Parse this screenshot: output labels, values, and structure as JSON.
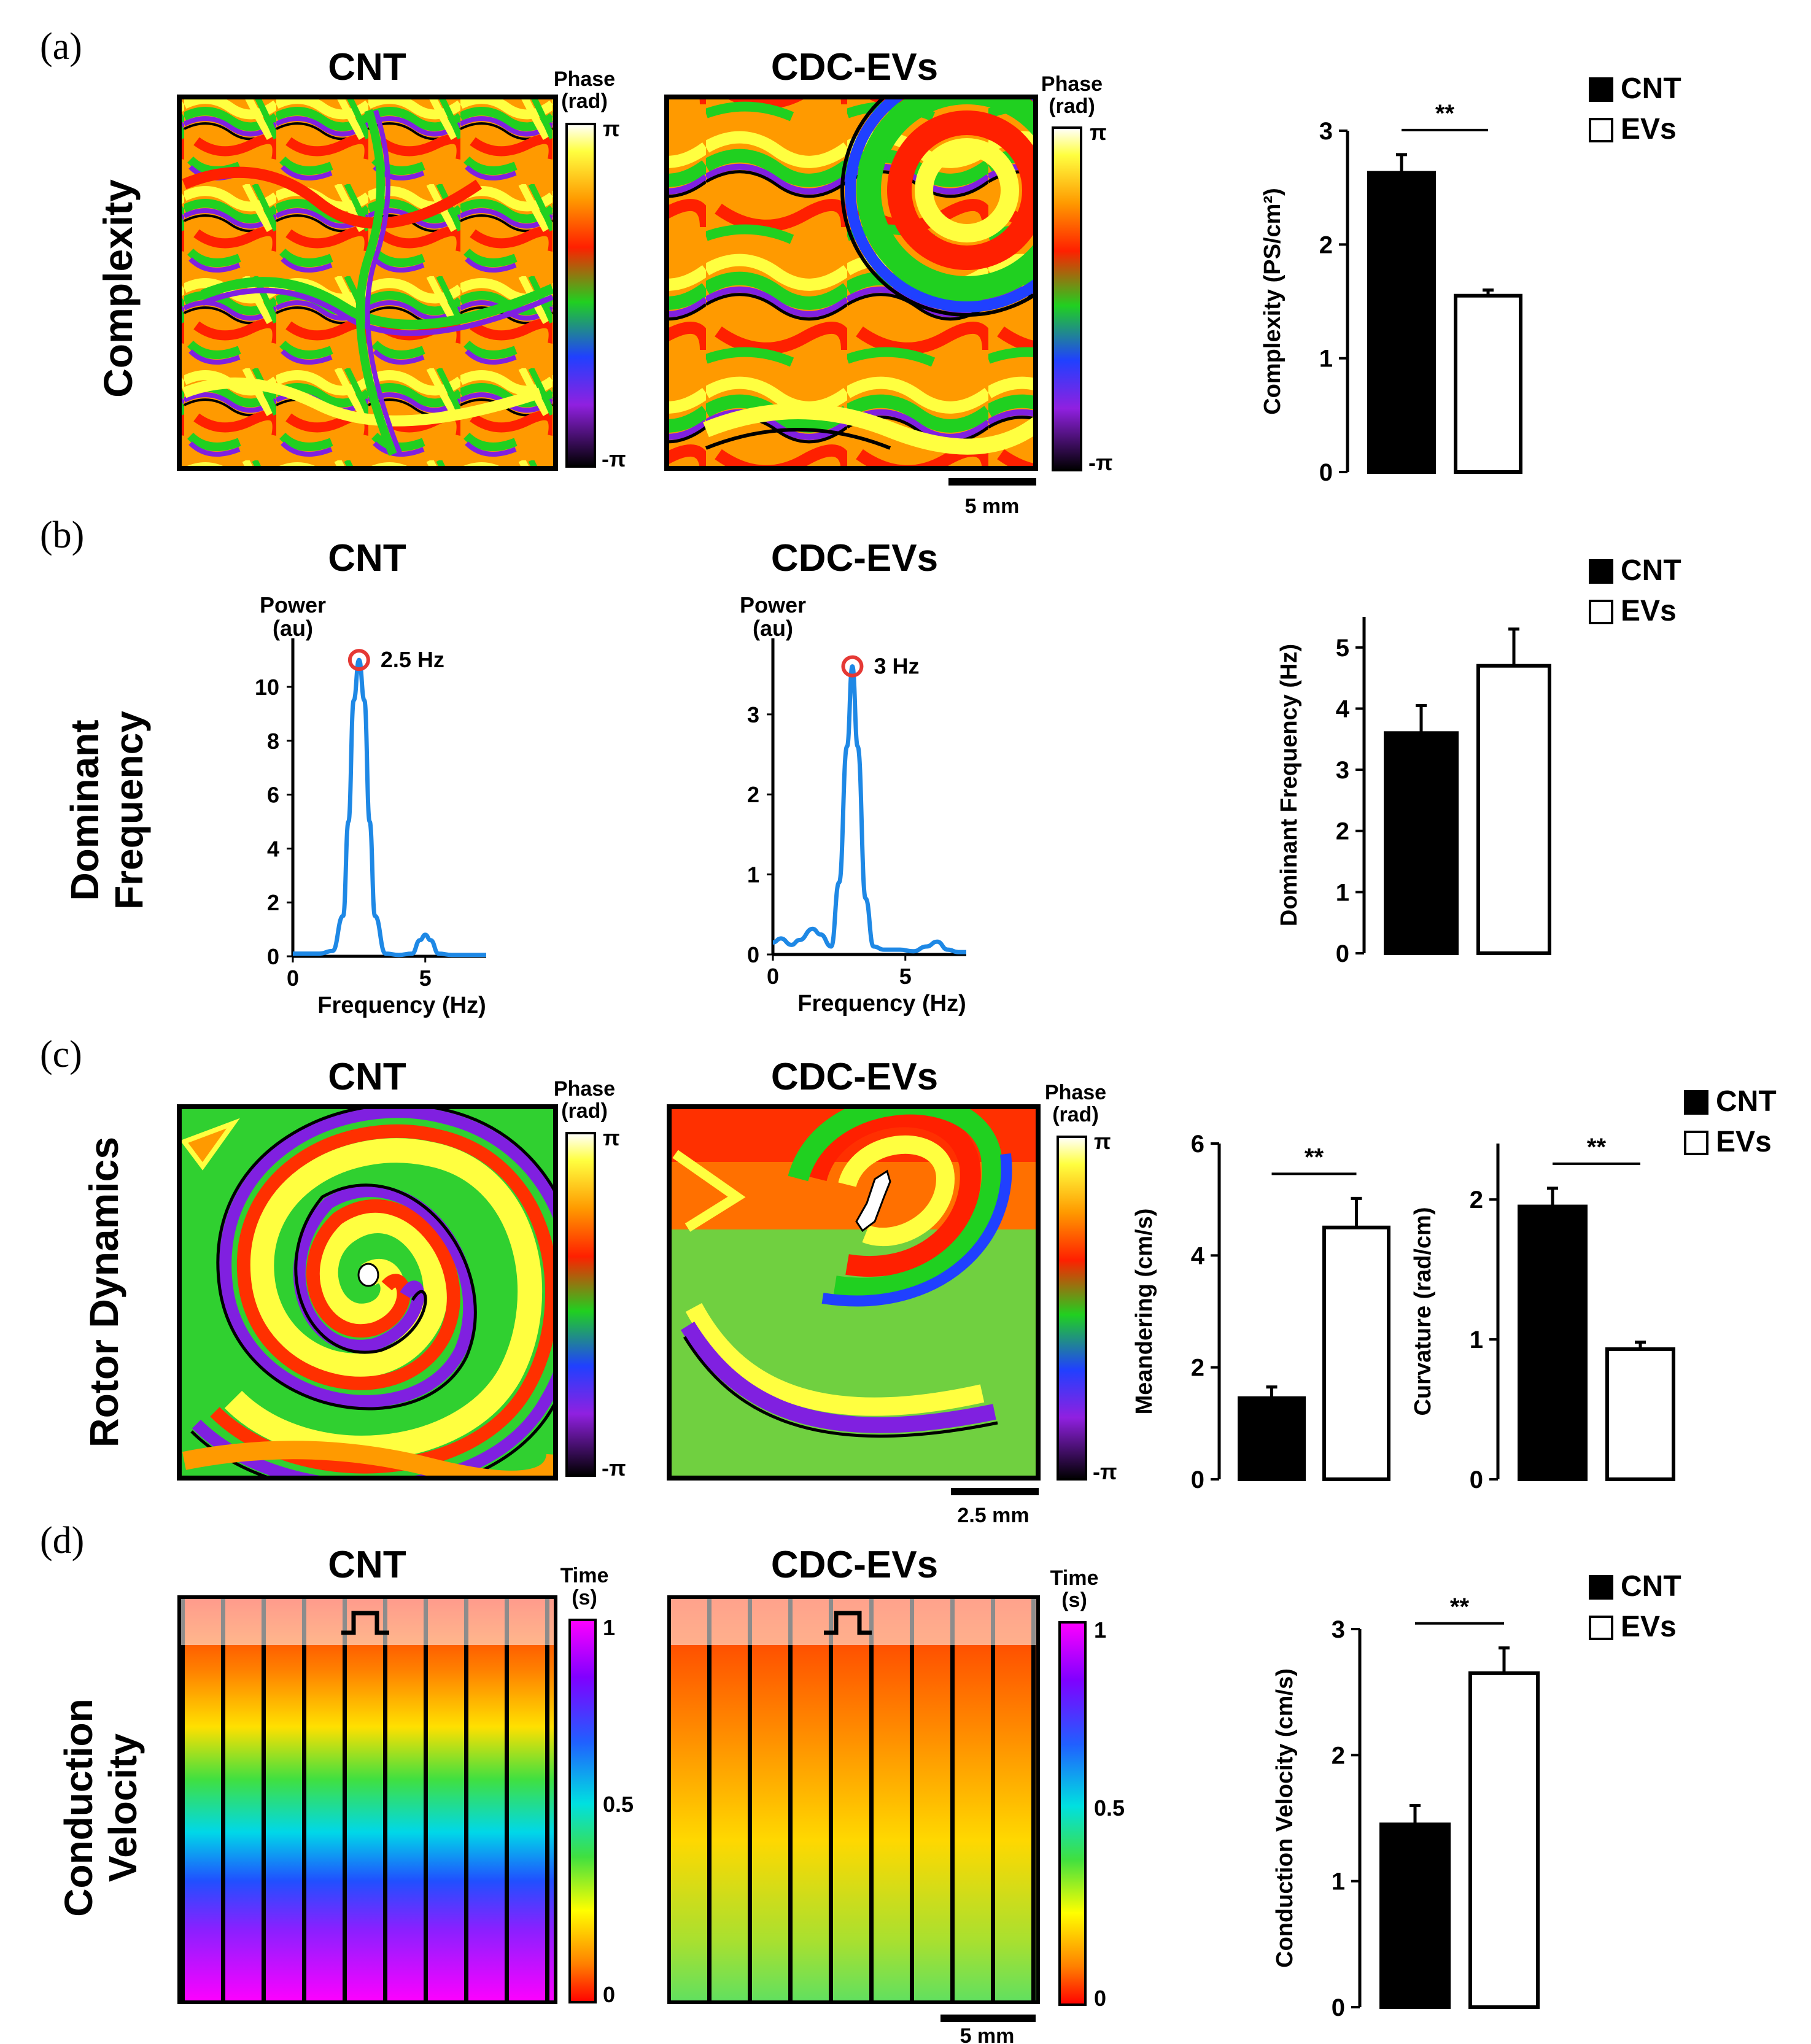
{
  "panels": {
    "a": {
      "letter": "(a)",
      "row_label": "Complexity",
      "left_title": "CNT",
      "right_title": "CDC-EVs",
      "colorbar": {
        "title1": "Phase",
        "title2": "(rad)",
        "top": "π",
        "bottom": "-π"
      },
      "scale_bar": "5 mm"
    },
    "b": {
      "letter": "(b)",
      "row_label_1": "Dominant",
      "row_label_2": "Frequency",
      "left_title": "CNT",
      "right_title": "CDC-EVs"
    },
    "c": {
      "letter": "(c)",
      "row_label": "Rotor Dynamics",
      "left_title": "CNT",
      "right_title": "CDC-EVs",
      "colorbar": {
        "title1": "Phase",
        "title2": "(rad)",
        "top": "π",
        "bottom": "-π"
      },
      "scale_bar": "2.5 mm"
    },
    "d": {
      "letter": "(d)",
      "row_label_1": "Conduction",
      "row_label_2": "Velocity",
      "left_title": "CNT",
      "right_title": "CDC-EVs",
      "colorbar": {
        "title1": "Time",
        "title2": "(s)",
        "top": "1",
        "mid": "0.5",
        "bottom": "0"
      },
      "scale_bar": "5 mm"
    }
  },
  "legend": {
    "cnt": "CNT",
    "evs": "EVs"
  },
  "colors": {
    "cnt_fill": "#000000",
    "evs_fill": "#ffffff",
    "spectrum_line": "#1e88e5",
    "peak_marker": "#e53935"
  },
  "chart_data": [
    {
      "id": "complexity",
      "type": "bar",
      "categories": [
        "CNT",
        "EVs"
      ],
      "values": [
        2.63,
        1.55
      ],
      "errors": [
        0.16,
        0.05
      ],
      "ylabel": "Complexity (PS/cm²)",
      "ylim": [
        0,
        3
      ],
      "yticks": [
        "0",
        "1",
        "2",
        "3"
      ],
      "significance": "**"
    },
    {
      "id": "spectrum_cnt",
      "type": "line",
      "x": [
        0,
        0.5,
        1,
        1.5,
        1.9,
        2.1,
        2.3,
        2.5,
        2.7,
        2.9,
        3.1,
        3.5,
        4,
        4.5,
        4.8,
        5,
        5.2,
        5.5,
        6,
        6.5,
        7,
        7.3
      ],
      "y": [
        0.1,
        0.1,
        0.1,
        0.2,
        1.5,
        5,
        9.5,
        11,
        9.5,
        5,
        1.5,
        0.1,
        0.05,
        0.1,
        0.6,
        0.8,
        0.6,
        0.1,
        0.05,
        0.05,
        0.05,
        0.05
      ],
      "xlabel": "Frequency (Hz)",
      "ylabel": "Power (au)",
      "ylabel_line1": "Power",
      "ylabel_line2": "(au)",
      "xlim": [
        0,
        7.3
      ],
      "ylim": [
        0,
        11.8
      ],
      "xticks": [
        "0",
        "5"
      ],
      "yticks": [
        "0",
        "2",
        "4",
        "6",
        "8",
        "10"
      ],
      "peak": {
        "x": 2.5,
        "y": 11,
        "label": "2.5 Hz"
      }
    },
    {
      "id": "spectrum_evs",
      "type": "line",
      "x": [
        0,
        0.3,
        0.7,
        1,
        1.5,
        1.8,
        2.2,
        2.5,
        2.8,
        3,
        3.2,
        3.5,
        3.8,
        4.2,
        4.8,
        5.3,
        5.8,
        6.2,
        6.6,
        7,
        7.3
      ],
      "y": [
        0.15,
        0.2,
        0.12,
        0.18,
        0.32,
        0.25,
        0.1,
        0.9,
        2.6,
        3.6,
        2.6,
        0.7,
        0.1,
        0.06,
        0.06,
        0.04,
        0.1,
        0.16,
        0.06,
        0.03,
        0.03
      ],
      "xlabel": "Frequency (Hz)",
      "ylabel": "Power (au)",
      "ylabel_line1": "Power",
      "ylabel_line2": "(au)",
      "xlim": [
        0,
        7.3
      ],
      "ylim": [
        0,
        3.95
      ],
      "xticks": [
        "0",
        "5"
      ],
      "yticks": [
        "0",
        "1",
        "2",
        "3"
      ],
      "peak": {
        "x": 3,
        "y": 3.6,
        "label": "3 Hz"
      }
    },
    {
      "id": "dominant_frequency",
      "type": "bar",
      "categories": [
        "CNT",
        "EVs"
      ],
      "values": [
        3.6,
        4.7
      ],
      "errors": [
        0.45,
        0.6
      ],
      "ylabel": "Dominant Frequency (Hz)",
      "ylim": [
        0,
        5.5
      ],
      "yticks": [
        "0",
        "1",
        "2",
        "3",
        "4",
        "5"
      ],
      "significance": ""
    },
    {
      "id": "meandering",
      "type": "bar",
      "categories": [
        "CNT",
        "EVs"
      ],
      "values": [
        1.45,
        4.5
      ],
      "errors": [
        0.2,
        0.52
      ],
      "ylabel": "Meandering (cm/s)",
      "ylim": [
        0,
        6
      ],
      "yticks": [
        "0",
        "2",
        "4",
        "6"
      ],
      "significance": "**"
    },
    {
      "id": "curvature",
      "type": "bar",
      "categories": [
        "CNT",
        "EVs"
      ],
      "values": [
        1.95,
        0.93
      ],
      "errors": [
        0.13,
        0.05
      ],
      "ylabel": "Curvature (rad/cm)",
      "ylim": [
        0,
        2.4
      ],
      "yticks": [
        "0",
        "1",
        "2"
      ],
      "significance": "**"
    },
    {
      "id": "conduction_velocity",
      "type": "bar",
      "categories": [
        "CNT",
        "EVs"
      ],
      "values": [
        1.45,
        2.65
      ],
      "errors": [
        0.15,
        0.2
      ],
      "ylabel": "Conduction Velocity (cm/s)",
      "ylim": [
        0,
        3
      ],
      "yticks": [
        "0",
        "1",
        "2",
        "3"
      ],
      "significance": "**"
    }
  ]
}
